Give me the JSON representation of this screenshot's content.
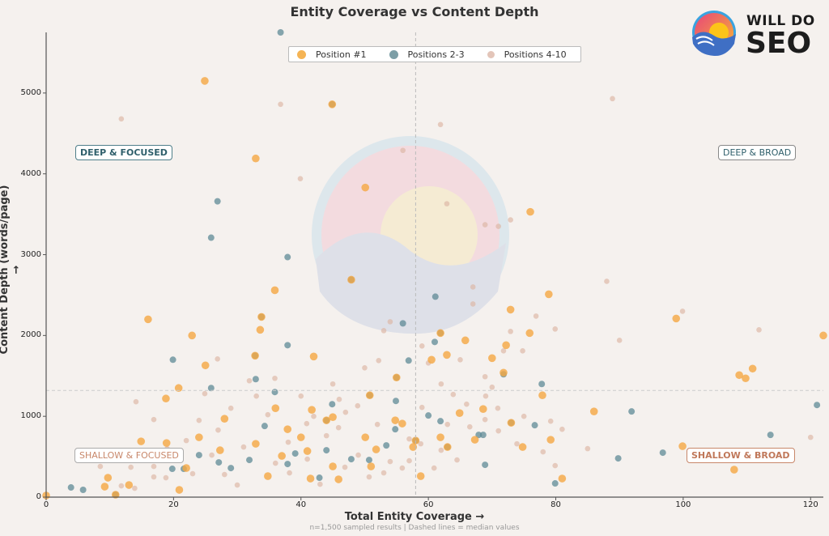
{
  "chart_data": {
    "type": "scatter",
    "title": "Entity Coverage vs Content Depth",
    "xlabel": "Total Entity Coverage →",
    "ylabel": "Content Depth (words/page) →",
    "note": "n=1,500 sampled results | Dashed lines = median values",
    "xlim": [
      0,
      122
    ],
    "ylim": [
      0,
      5750
    ],
    "xticks": [
      "0",
      "20",
      "40",
      "60",
      "80",
      "100",
      "120"
    ],
    "yticks": [
      "0",
      "1000",
      "2000",
      "3000",
      "4000",
      "5000"
    ],
    "median_x": 58,
    "median_y": 1320,
    "legend_placement": "top-center",
    "quadrants": {
      "deep_focused": "DEEP & FOCUSED",
      "deep_broad": "DEEP & BROAD",
      "shallow_focused": "SHALLOW & FOCUSED",
      "shallow_broad": "SHALLOW & BROAD"
    },
    "series": [
      {
        "name": "Positions 4-10",
        "color": "#dcb5a3",
        "points": [
          [
            11.8,
            4680
          ],
          [
            36.8,
            4860
          ],
          [
            56,
            4290
          ],
          [
            61.9,
            4610
          ],
          [
            39.9,
            3940
          ],
          [
            88.9,
            4930
          ],
          [
            62.9,
            3630
          ],
          [
            68.9,
            3370
          ],
          [
            71,
            3350
          ],
          [
            72.9,
            3430
          ],
          [
            67,
            2600
          ],
          [
            67,
            2390
          ],
          [
            88,
            2670
          ],
          [
            99.9,
            2300
          ],
          [
            76.9,
            2240
          ],
          [
            79.9,
            2080
          ],
          [
            90,
            1940
          ],
          [
            111.9,
            2070
          ],
          [
            120,
            740
          ],
          [
            14.1,
            1180
          ],
          [
            16.9,
            960
          ],
          [
            24,
            950
          ],
          [
            26.9,
            1710
          ],
          [
            24.9,
            1280
          ],
          [
            31.9,
            1440
          ],
          [
            35.9,
            1470
          ],
          [
            40.9,
            910
          ],
          [
            46,
            1210
          ],
          [
            52.2,
            1690
          ],
          [
            53,
            2060
          ],
          [
            54,
            2170
          ],
          [
            59,
            1870
          ],
          [
            60,
            1660
          ],
          [
            59,
            1110
          ],
          [
            63.9,
            1270
          ],
          [
            70,
            1360
          ],
          [
            71.8,
            1810
          ],
          [
            72.9,
            2050
          ],
          [
            74.8,
            1810
          ],
          [
            68.9,
            1490
          ],
          [
            70.9,
            1100
          ],
          [
            11.8,
            140
          ],
          [
            16.9,
            250
          ],
          [
            18.8,
            240
          ],
          [
            13.9,
            110
          ],
          [
            8.5,
            380
          ],
          [
            13.3,
            370
          ],
          [
            16.9,
            380
          ],
          [
            23,
            290
          ],
          [
            28,
            280
          ],
          [
            30,
            150
          ],
          [
            38.2,
            300
          ],
          [
            43,
            160
          ],
          [
            46.9,
            370
          ],
          [
            50.7,
            250
          ],
          [
            55.9,
            360
          ],
          [
            60.9,
            360
          ],
          [
            54,
            440
          ],
          [
            62,
            580
          ],
          [
            66.5,
            870
          ],
          [
            71,
            820
          ],
          [
            79.2,
            940
          ],
          [
            79.9,
            390
          ],
          [
            34.8,
            1020
          ],
          [
            38,
            680
          ],
          [
            48.9,
            1130
          ],
          [
            45.9,
            860
          ],
          [
            57,
            720
          ],
          [
            58.8,
            660
          ],
          [
            64.5,
            460
          ],
          [
            68.9,
            960
          ],
          [
            73.9,
            660
          ],
          [
            29,
            1100
          ],
          [
            33,
            1250
          ],
          [
            42,
            1000
          ],
          [
            47,
            1050
          ],
          [
            52,
            900
          ],
          [
            44,
            760
          ],
          [
            27,
            830
          ],
          [
            31,
            620
          ],
          [
            36,
            420
          ],
          [
            41,
            470
          ],
          [
            49,
            520
          ],
          [
            53,
            300
          ],
          [
            57,
            450
          ],
          [
            63,
            900
          ],
          [
            66,
            1150
          ],
          [
            75,
            1000
          ],
          [
            78,
            560
          ],
          [
            81,
            840
          ],
          [
            85,
            600
          ],
          [
            26,
            520
          ],
          [
            22,
            700
          ],
          [
            19,
            600
          ],
          [
            40,
            1250
          ],
          [
            45,
            1400
          ],
          [
            50,
            1600
          ],
          [
            62,
            1400
          ],
          [
            65,
            1700
          ],
          [
            69,
            1250
          ]
        ]
      },
      {
        "name": "Positions 2-3",
        "color": "#5e8a96",
        "points": [
          [
            36.8,
            5750
          ],
          [
            26.9,
            3660
          ],
          [
            25.9,
            3210
          ],
          [
            37.9,
            2970
          ],
          [
            56,
            2150
          ],
          [
            56.9,
            1690
          ],
          [
            19.9,
            1700
          ],
          [
            25.9,
            1350
          ],
          [
            32.9,
            1460
          ],
          [
            35.9,
            1300
          ],
          [
            37.9,
            1880
          ],
          [
            44.9,
            1150
          ],
          [
            50.7,
            460
          ],
          [
            54.8,
            840
          ],
          [
            60,
            1010
          ],
          [
            61.9,
            940
          ],
          [
            68.6,
            770
          ],
          [
            71.8,
            1520
          ],
          [
            77.8,
            1400
          ],
          [
            76.7,
            890
          ],
          [
            79.9,
            170
          ],
          [
            89.8,
            480
          ],
          [
            96.8,
            550
          ],
          [
            113.7,
            770
          ],
          [
            121,
            1140
          ],
          [
            91.9,
            1060
          ],
          [
            5.8,
            90
          ],
          [
            21.6,
            350
          ],
          [
            19.8,
            350
          ],
          [
            24,
            520
          ],
          [
            27.1,
            430
          ],
          [
            29,
            360
          ],
          [
            31.9,
            460
          ],
          [
            34.3,
            880
          ],
          [
            37.9,
            410
          ],
          [
            39.1,
            540
          ],
          [
            42.9,
            240
          ],
          [
            44,
            580
          ],
          [
            47.9,
            470
          ],
          [
            53.4,
            640
          ],
          [
            54.9,
            1190
          ],
          [
            61,
            1920
          ],
          [
            61.1,
            2480
          ],
          [
            67.9,
            770
          ],
          [
            68.9,
            400
          ],
          [
            44.9,
            4860
          ],
          [
            47.9,
            2690
          ],
          [
            61.9,
            2030
          ],
          [
            50.8,
            1260
          ],
          [
            32.8,
            1750
          ],
          [
            3.9,
            120
          ],
          [
            10.9,
            30
          ],
          [
            33.8,
            2230
          ],
          [
            44,
            950
          ],
          [
            58,
            700
          ],
          [
            63,
            620
          ],
          [
            73,
            920
          ],
          [
            55,
            1480
          ]
        ]
      },
      {
        "name": "Position #1",
        "color": "#f5a742",
        "points": [
          [
            24.9,
            5150
          ],
          [
            32.9,
            4190
          ],
          [
            50.1,
            3830
          ],
          [
            33.6,
            2070
          ],
          [
            16,
            2200
          ],
          [
            22.9,
            2000
          ],
          [
            35.9,
            2560
          ],
          [
            25,
            1630
          ],
          [
            20.8,
            1350
          ],
          [
            18.8,
            1220
          ],
          [
            14.9,
            690
          ],
          [
            18.9,
            670
          ],
          [
            24,
            740
          ],
          [
            28,
            970
          ],
          [
            32.9,
            660
          ],
          [
            37.9,
            840
          ],
          [
            41.7,
            1080
          ],
          [
            40,
            740
          ],
          [
            41,
            570
          ],
          [
            45,
            380
          ],
          [
            51,
            380
          ],
          [
            51.8,
            590
          ],
          [
            54.8,
            950
          ],
          [
            55.9,
            910
          ],
          [
            57.6,
            620
          ],
          [
            58.8,
            260
          ],
          [
            61.9,
            740
          ],
          [
            62.9,
            1760
          ],
          [
            65.8,
            1940
          ],
          [
            68.6,
            1090
          ],
          [
            71.8,
            1540
          ],
          [
            72.2,
            1880
          ],
          [
            72.9,
            2320
          ],
          [
            75.9,
            2030
          ],
          [
            74.8,
            620
          ],
          [
            77.9,
            1260
          ],
          [
            78.9,
            2510
          ],
          [
            79.2,
            710
          ],
          [
            99.9,
            630
          ],
          [
            98.9,
            2210
          ],
          [
            108.8,
            1510
          ],
          [
            109.8,
            1470
          ],
          [
            110.9,
            1590
          ],
          [
            108,
            340
          ],
          [
            122,
            2000
          ],
          [
            9.7,
            240
          ],
          [
            9.2,
            130
          ],
          [
            13,
            150
          ],
          [
            20.9,
            90
          ],
          [
            0,
            20
          ],
          [
            41.5,
            230
          ],
          [
            45.9,
            220
          ],
          [
            37,
            510
          ],
          [
            34.8,
            260
          ],
          [
            27.3,
            580
          ],
          [
            22,
            360
          ],
          [
            50.1,
            740
          ],
          [
            45,
            990
          ],
          [
            64.9,
            1040
          ],
          [
            67.3,
            710
          ],
          [
            44.9,
            4860
          ],
          [
            47.9,
            2690
          ],
          [
            61.9,
            2030
          ],
          [
            50.8,
            1260
          ],
          [
            32.8,
            1750
          ],
          [
            10.9,
            30
          ],
          [
            33.8,
            2230
          ],
          [
            44,
            950
          ],
          [
            58,
            700
          ],
          [
            63,
            620
          ],
          [
            73,
            920
          ],
          [
            55,
            1480
          ],
          [
            60.5,
            1700
          ],
          [
            81,
            230
          ],
          [
            86,
            1060
          ],
          [
            42,
            1740
          ],
          [
            36,
            1100
          ],
          [
            70,
            1720
          ],
          [
            76,
            3530
          ]
        ]
      }
    ]
  },
  "logo": {
    "line1": "WILL DO",
    "line2": "SEO"
  }
}
